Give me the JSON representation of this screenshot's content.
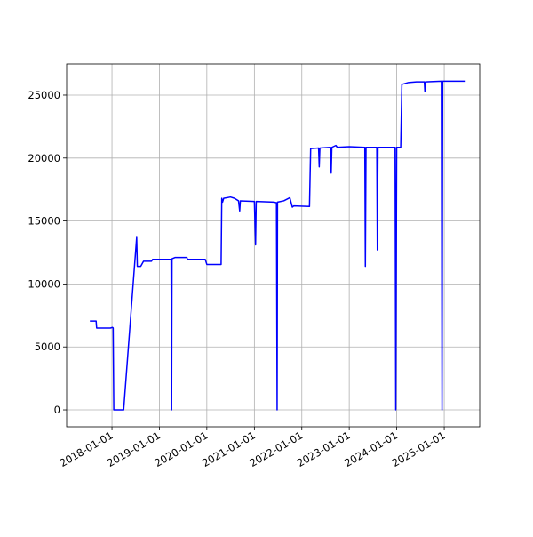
{
  "chart_data": {
    "type": "line",
    "color": "#0000ff",
    "grid": true,
    "x": [
      "2017-07-15",
      "2017-09-01",
      "2017-09-05",
      "2017-12-20",
      "2018-01-05",
      "2018-01-10",
      "2018-01-15",
      "2018-04-01",
      "2018-07-10",
      "2018-07-15",
      "2018-08-10",
      "2018-09-01",
      "2018-11-01",
      "2018-11-10",
      "2019-04-01",
      "2019-04-05",
      "2019-04-08",
      "2019-05-01",
      "2019-08-01",
      "2019-08-05",
      "2019-12-20",
      "2020-01-01",
      "2020-04-20",
      "2020-04-25",
      "2020-05-01",
      "2020-05-10",
      "2020-07-01",
      "2020-08-01",
      "2020-09-01",
      "2020-09-10",
      "2020-09-15",
      "2021-01-01",
      "2021-01-10",
      "2021-01-15",
      "2021-06-01",
      "2021-06-20",
      "2021-06-25",
      "2021-06-28",
      "2021-08-15",
      "2021-10-01",
      "2021-10-20",
      "2021-11-01",
      "2022-03-01",
      "2022-03-10",
      "2022-05-10",
      "2022-05-15",
      "2022-05-20",
      "2022-08-10",
      "2022-08-15",
      "2022-08-20",
      "2022-09-20",
      "2022-10-01",
      "2023-01-01",
      "2023-05-01",
      "2023-05-05",
      "2023-05-10",
      "2023-08-01",
      "2023-08-05",
      "2023-08-10",
      "2023-12-20",
      "2023-12-25",
      "2024-01-01",
      "2024-02-01",
      "2024-02-10",
      "2024-04-01",
      "2024-06-01",
      "2024-08-01",
      "2024-08-05",
      "2024-08-10",
      "2024-12-10",
      "2024-12-15",
      "2024-12-20",
      "2025-06-15"
    ],
    "values": [
      7050,
      7050,
      6500,
      6500,
      6550,
      6500,
      0,
      0,
      13700,
      11400,
      11400,
      11800,
      11800,
      11950,
      11950,
      0,
      12000,
      12100,
      12100,
      11950,
      11950,
      11550,
      11550,
      16800,
      16500,
      16800,
      16900,
      16800,
      16600,
      15800,
      16600,
      16550,
      13100,
      16550,
      16500,
      16450,
      0,
      16500,
      16600,
      16850,
      16100,
      16200,
      16150,
      20750,
      20800,
      19300,
      20800,
      20850,
      18800,
      20850,
      21000,
      20850,
      20900,
      20850,
      11400,
      20850,
      20850,
      12700,
      20850,
      20850,
      0,
      20850,
      20850,
      25850,
      26000,
      26050,
      26050,
      25300,
      26050,
      26100,
      0,
      26100,
      26100
    ],
    "xlim": [
      "2017-01-17",
      "2025-10-01"
    ],
    "xticks": [
      "2018-01-01",
      "2019-01-01",
      "2020-01-01",
      "2021-01-01",
      "2022-01-01",
      "2023-01-01",
      "2024-01-01",
      "2025-01-01"
    ],
    "ylim": [
      -1340,
      27470
    ],
    "yticks": [
      0,
      5000,
      10000,
      15000,
      20000,
      25000
    ]
  }
}
